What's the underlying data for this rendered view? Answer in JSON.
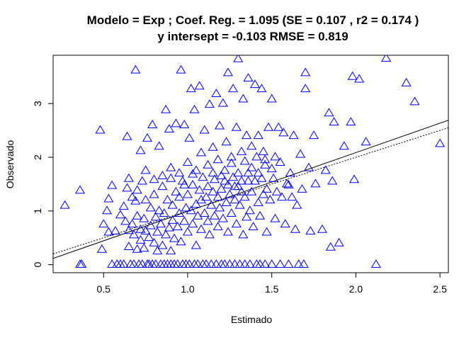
{
  "chart_data": {
    "type": "scatter",
    "title_line1": "Modelo =  Exp ; Coef. Reg. =  1.095  (SE =  0.107 , r2 =  0.174 )",
    "title_line2": "y intersept =  -0.103 RMSE =  0.819",
    "xlabel": "Estimado",
    "ylabel": "Observado",
    "xlim": [
      0.2,
      2.55
    ],
    "ylim": [
      -0.15,
      3.9
    ],
    "xticks": [
      0.5,
      1.0,
      1.5,
      2.0,
      2.5
    ],
    "xtick_labels": [
      "0.5",
      "1.0",
      "1.5",
      "2.0",
      "2.5"
    ],
    "yticks": [
      0,
      1,
      2,
      3
    ],
    "ytick_labels": [
      "0",
      "1",
      "2",
      "3"
    ],
    "marker": "open-triangle",
    "marker_color": "#0000ff",
    "grid": false,
    "lines": [
      {
        "style": "solid",
        "intercept": -0.103,
        "slope": 1.095
      },
      {
        "style": "dotted",
        "intercept": 0.0,
        "slope": 1.0
      }
    ],
    "points": [
      [
        0.27,
        1.1
      ],
      [
        0.36,
        1.38
      ],
      [
        0.36,
        0.0
      ],
      [
        0.37,
        0.0
      ],
      [
        0.48,
        2.5
      ],
      [
        0.49,
        0.28
      ],
      [
        0.5,
        0.75
      ],
      [
        0.52,
        1.0
      ],
      [
        0.53,
        1.22
      ],
      [
        0.53,
        0.6
      ],
      [
        0.55,
        0.0
      ],
      [
        0.55,
        1.47
      ],
      [
        0.57,
        0.62
      ],
      [
        0.58,
        0.0
      ],
      [
        0.6,
        0.92
      ],
      [
        0.6,
        0.0
      ],
      [
        0.62,
        1.08
      ],
      [
        0.62,
        0.0
      ],
      [
        0.63,
        0.8
      ],
      [
        0.64,
        1.42
      ],
      [
        0.64,
        2.38
      ],
      [
        0.65,
        0.33
      ],
      [
        0.65,
        0.63
      ],
      [
        0.66,
        0.0
      ],
      [
        0.67,
        0.75
      ],
      [
        0.67,
        1.25
      ],
      [
        0.68,
        0.55
      ],
      [
        0.68,
        0.0
      ],
      [
        0.69,
        3.62
      ],
      [
        0.69,
        1.18
      ],
      [
        0.7,
        0.9
      ],
      [
        0.7,
        0.28
      ],
      [
        0.71,
        0.0
      ],
      [
        0.72,
        2.12
      ],
      [
        0.72,
        0.45
      ],
      [
        0.72,
        0.65
      ],
      [
        0.73,
        1.55
      ],
      [
        0.73,
        0.0
      ],
      [
        0.74,
        0.85
      ],
      [
        0.74,
        0.3
      ],
      [
        0.75,
        0.62
      ],
      [
        0.75,
        1.2
      ],
      [
        0.76,
        0.0
      ],
      [
        0.76,
        2.35
      ],
      [
        0.77,
        0.5
      ],
      [
        0.77,
        0.0
      ],
      [
        0.78,
        1.05
      ],
      [
        0.78,
        0.72
      ],
      [
        0.79,
        2.6
      ],
      [
        0.79,
        0.0
      ],
      [
        0.8,
        0.4
      ],
      [
        0.8,
        1.3
      ],
      [
        0.81,
        0.88
      ],
      [
        0.81,
        0.0
      ],
      [
        0.82,
        0.25
      ],
      [
        0.82,
        0.6
      ],
      [
        0.83,
        2.2
      ],
      [
        0.83,
        1.0
      ],
      [
        0.84,
        0.0
      ],
      [
        0.84,
        0.75
      ],
      [
        0.85,
        1.45
      ],
      [
        0.85,
        0.35
      ],
      [
        0.86,
        0.0
      ],
      [
        0.86,
        0.95
      ],
      [
        0.87,
        2.88
      ],
      [
        0.87,
        0.55
      ],
      [
        0.88,
        1.2
      ],
      [
        0.88,
        0.0
      ],
      [
        0.89,
        0.68
      ],
      [
        0.89,
        2.52
      ],
      [
        0.9,
        1.6
      ],
      [
        0.9,
        0.0
      ],
      [
        0.9,
        0.25
      ],
      [
        0.91,
        0.82
      ],
      [
        0.91,
        1.1
      ],
      [
        0.92,
        0.48
      ],
      [
        0.92,
        0.0
      ],
      [
        0.93,
        1.35
      ],
      [
        0.93,
        2.62
      ],
      [
        0.94,
        0.7
      ],
      [
        0.94,
        0.0
      ],
      [
        0.95,
        0.95
      ],
      [
        0.95,
        1.25
      ],
      [
        0.96,
        3.62
      ],
      [
        0.96,
        0.42
      ],
      [
        0.97,
        0.0
      ],
      [
        0.97,
        1.55
      ],
      [
        0.98,
        2.6
      ],
      [
        0.98,
        0.8
      ],
      [
        0.99,
        1.05
      ],
      [
        0.99,
        0.0
      ],
      [
        1.0,
        1.3
      ],
      [
        1.0,
        0.6
      ],
      [
        1.01,
        2.35
      ],
      [
        1.01,
        0.0
      ],
      [
        1.02,
        1.0
      ],
      [
        1.02,
        3.27
      ],
      [
        1.03,
        0.75
      ],
      [
        1.03,
        1.48
      ],
      [
        1.04,
        0.0
      ],
      [
        1.04,
        2.88
      ],
      [
        1.05,
        1.12
      ],
      [
        1.05,
        0.35
      ],
      [
        1.06,
        0.9
      ],
      [
        1.06,
        0.0
      ],
      [
        1.07,
        1.38
      ],
      [
        1.07,
        3.32
      ],
      [
        1.08,
        0.65
      ],
      [
        1.08,
        1.2
      ],
      [
        1.09,
        0.0
      ],
      [
        1.09,
        1.62
      ],
      [
        1.1,
        0.95
      ],
      [
        1.1,
        2.5
      ],
      [
        1.11,
        1.25
      ],
      [
        1.11,
        0.0
      ],
      [
        1.12,
        0.8
      ],
      [
        1.12,
        1.45
      ],
      [
        1.13,
        2.98
      ],
      [
        1.13,
        0.55
      ],
      [
        1.14,
        1.1
      ],
      [
        1.14,
        0.0
      ],
      [
        1.15,
        1.35
      ],
      [
        1.15,
        2.18
      ],
      [
        1.16,
        0.9
      ],
      [
        1.16,
        1.58
      ],
      [
        1.17,
        0.0
      ],
      [
        1.17,
        3.18
      ],
      [
        1.18,
        1.25
      ],
      [
        1.18,
        0.7
      ],
      [
        1.19,
        2.58
      ],
      [
        1.19,
        1.05
      ],
      [
        1.2,
        0.0
      ],
      [
        1.2,
        1.4
      ],
      [
        1.21,
        3.0
      ],
      [
        1.21,
        0.85
      ],
      [
        1.22,
        1.55
      ],
      [
        1.22,
        0.0
      ],
      [
        1.23,
        2.28
      ],
      [
        1.23,
        1.15
      ],
      [
        1.24,
        0.6
      ],
      [
        1.24,
        3.57
      ],
      [
        1.25,
        1.3
      ],
      [
        1.25,
        0.0
      ],
      [
        1.26,
        2.0
      ],
      [
        1.26,
        0.95
      ],
      [
        1.27,
        1.62
      ],
      [
        1.27,
        3.27
      ],
      [
        1.28,
        0.0
      ],
      [
        1.28,
        1.2
      ],
      [
        1.29,
        2.55
      ],
      [
        1.29,
        0.75
      ],
      [
        1.3,
        1.45
      ],
      [
        1.3,
        3.83
      ],
      [
        1.31,
        0.0
      ],
      [
        1.31,
        1.1
      ],
      [
        1.32,
        2.1
      ],
      [
        1.32,
        1.55
      ],
      [
        1.33,
        0.55
      ],
      [
        1.33,
        3.08
      ],
      [
        1.34,
        1.25
      ],
      [
        1.34,
        0.0
      ],
      [
        1.35,
        2.4
      ],
      [
        1.35,
        0.88
      ],
      [
        1.36,
        1.7
      ],
      [
        1.36,
        3.47
      ],
      [
        1.37,
        1.0
      ],
      [
        1.37,
        0.0
      ],
      [
        1.38,
        2.2
      ],
      [
        1.38,
        1.35
      ],
      [
        1.39,
        0.7
      ],
      [
        1.4,
        3.35
      ],
      [
        1.4,
        1.55
      ],
      [
        1.41,
        0.0
      ],
      [
        1.41,
        2.0
      ],
      [
        1.42,
        1.15
      ],
      [
        1.42,
        2.4
      ],
      [
        1.43,
        0.9
      ],
      [
        1.43,
        0.0
      ],
      [
        1.44,
        1.6
      ],
      [
        1.44,
        3.27
      ],
      [
        1.45,
        1.3
      ],
      [
        1.45,
        2.1
      ],
      [
        1.46,
        0.0
      ],
      [
        1.46,
        1.85
      ],
      [
        1.47,
        0.6
      ],
      [
        1.47,
        1.4
      ],
      [
        1.48,
        2.55
      ],
      [
        1.49,
        1.2
      ],
      [
        1.5,
        0.0
      ],
      [
        1.5,
        3.08
      ],
      [
        1.51,
        1.6
      ],
      [
        1.52,
        2.0
      ],
      [
        1.52,
        0.85
      ],
      [
        1.53,
        1.35
      ],
      [
        1.54,
        2.55
      ],
      [
        1.55,
        0.0
      ],
      [
        1.56,
        1.25
      ],
      [
        1.57,
        2.45
      ],
      [
        1.58,
        0.75
      ],
      [
        1.59,
        1.5
      ],
      [
        1.6,
        0.0
      ],
      [
        1.61,
        1.7
      ],
      [
        1.62,
        1.25
      ],
      [
        1.63,
        2.4
      ],
      [
        1.64,
        0.65
      ],
      [
        1.65,
        1.1
      ],
      [
        1.66,
        0.0
      ],
      [
        1.67,
        2.05
      ],
      [
        1.68,
        1.4
      ],
      [
        1.69,
        0.0
      ],
      [
        1.7,
        3.27
      ],
      [
        1.7,
        3.57
      ],
      [
        1.72,
        1.8
      ],
      [
        1.73,
        0.62
      ],
      [
        1.75,
        2.4
      ],
      [
        1.76,
        1.5
      ],
      [
        1.8,
        0.65
      ],
      [
        1.82,
        1.75
      ],
      [
        1.84,
        2.82
      ],
      [
        1.85,
        0.32
      ],
      [
        1.86,
        1.55
      ],
      [
        1.87,
        2.65
      ],
      [
        1.9,
        0.4
      ],
      [
        1.93,
        2.2
      ],
      [
        1.97,
        2.65
      ],
      [
        1.98,
        3.5
      ],
      [
        1.99,
        1.58
      ],
      [
        2.02,
        3.45
      ],
      [
        2.06,
        2.28
      ],
      [
        2.12,
        0.0
      ],
      [
        2.18,
        3.84
      ],
      [
        2.3,
        3.38
      ],
      [
        2.35,
        3.03
      ],
      [
        2.5,
        2.25
      ],
      [
        0.9,
        1.8
      ],
      [
        0.95,
        1.7
      ],
      [
        1.0,
        1.9
      ],
      [
        1.05,
        1.75
      ],
      [
        1.08,
        2.08
      ],
      [
        1.12,
        1.85
      ],
      [
        1.18,
        1.95
      ],
      [
        1.22,
        1.75
      ],
      [
        1.26,
        1.88
      ],
      [
        1.3,
        1.7
      ],
      [
        1.34,
        1.92
      ],
      [
        1.38,
        1.8
      ],
      [
        1.42,
        1.7
      ],
      [
        1.46,
        1.95
      ],
      [
        0.85,
        1.65
      ],
      [
        0.98,
        1.48
      ],
      [
        1.03,
        1.68
      ],
      [
        1.15,
        1.7
      ],
      [
        1.2,
        1.65
      ],
      [
        1.24,
        1.48
      ],
      [
        0.75,
        1.75
      ],
      [
        0.8,
        1.58
      ],
      [
        0.7,
        1.38
      ],
      [
        0.65,
        1.6
      ],
      [
        1.55,
        1.9
      ],
      [
        1.5,
        1.78
      ],
      [
        1.6,
        1.48
      ],
      [
        1.36,
        1.55
      ],
      [
        1.32,
        1.35
      ],
      [
        1.28,
        1.45
      ]
    ]
  }
}
